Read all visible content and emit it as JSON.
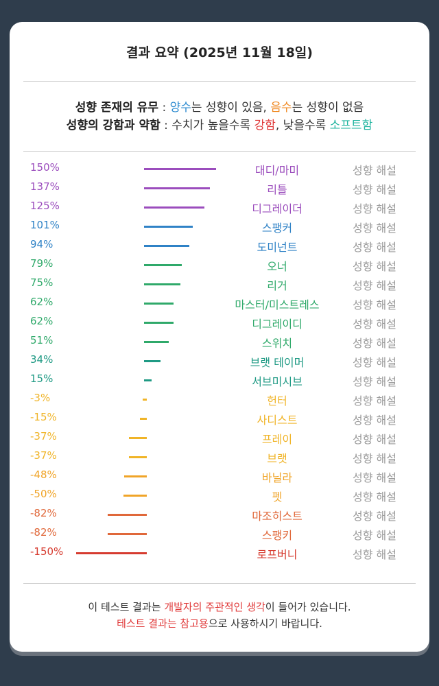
{
  "title": "결과 요약 (2025년 11월 18일)",
  "legend": {
    "line1": {
      "label": "성향 존재의 유무",
      "sep": " : ",
      "positive": "양수",
      "mid1": "는 성향이 있음, ",
      "negative": "음수",
      "mid2": "는 성향이 없음"
    },
    "line2": {
      "label": "성향의 강함과 약함",
      "sep": " : ",
      "mid1": "수치가 높을수록 ",
      "strong": "강함",
      "mid2": ", 낮을수록 ",
      "soft": "소프트함"
    }
  },
  "colors": {
    "positive": "#2d8bd0",
    "negative": "#f08a24",
    "strong": "#e03a3a",
    "soft": "#22b5a0"
  },
  "desc_label": "성향 해설",
  "rows": [
    {
      "pct": "150%",
      "value": 150,
      "name": "대디/마미",
      "color": "#9b4dbd"
    },
    {
      "pct": "137%",
      "value": 137,
      "name": "리틀",
      "color": "#9b4dbd"
    },
    {
      "pct": "125%",
      "value": 125,
      "name": "디그레이더",
      "color": "#9b4dbd"
    },
    {
      "pct": "101%",
      "value": 101,
      "name": "스팽커",
      "color": "#2f82c6"
    },
    {
      "pct": "94%",
      "value": 94,
      "name": "도미넌트",
      "color": "#2f82c6"
    },
    {
      "pct": "79%",
      "value": 79,
      "name": "오너",
      "color": "#2fa96a"
    },
    {
      "pct": "75%",
      "value": 75,
      "name": "리거",
      "color": "#2fa96a"
    },
    {
      "pct": "62%",
      "value": 62,
      "name": "마스터/미스트레스",
      "color": "#2fa96a"
    },
    {
      "pct": "62%",
      "value": 62,
      "name": "디그레이디",
      "color": "#2fa96a"
    },
    {
      "pct": "51%",
      "value": 51,
      "name": "스위치",
      "color": "#2fa96a"
    },
    {
      "pct": "34%",
      "value": 34,
      "name": "브랫 테이머",
      "color": "#1f9a84"
    },
    {
      "pct": "15%",
      "value": 15,
      "name": "서브미시브",
      "color": "#1f9a84"
    },
    {
      "pct": "-3%",
      "value": -3,
      "name": "헌터",
      "color": "#f0b428"
    },
    {
      "pct": "-15%",
      "value": -15,
      "name": "사디스트",
      "color": "#f0b428"
    },
    {
      "pct": "-37%",
      "value": -37,
      "name": "프레이",
      "color": "#f0b428"
    },
    {
      "pct": "-37%",
      "value": -37,
      "name": "브랫",
      "color": "#f0b428"
    },
    {
      "pct": "-48%",
      "value": -48,
      "name": "바닐라",
      "color": "#f0a428"
    },
    {
      "pct": "-50%",
      "value": -50,
      "name": "펫",
      "color": "#f0a428"
    },
    {
      "pct": "-82%",
      "value": -82,
      "name": "마조히스트",
      "color": "#e0683a"
    },
    {
      "pct": "-82%",
      "value": -82,
      "name": "스팽키",
      "color": "#e0683a"
    },
    {
      "pct": "-150%",
      "value": -150,
      "name": "로프버니",
      "color": "#d63b2f"
    }
  ],
  "footer": {
    "line1_a": "이 테스트 결과는 ",
    "line1_highlight": "개발자의 주관적인 생각",
    "line1_b": "이 들어가 있습니다.",
    "line2_highlight": "테스트 결과는 참고용",
    "line2_b": "으로 사용하시기 바랍니다."
  }
}
